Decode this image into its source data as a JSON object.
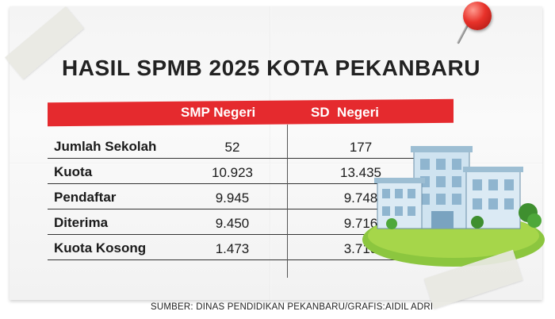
{
  "title": "HASIL SPMB 2025 KOTA PEKANBARU",
  "table": {
    "columns": [
      "SMP Negeri",
      "SD  Negeri"
    ],
    "rows": [
      {
        "label": "Jumlah Sekolah",
        "smp": "52",
        "sd": "177"
      },
      {
        "label": "Kuota",
        "smp": "10.923",
        "sd": "13.435"
      },
      {
        "label": "Pendaftar",
        "smp": "9.945",
        "sd": "9.748"
      },
      {
        "label": "Diterima",
        "smp": "9.450",
        "sd": "9.716"
      },
      {
        "label": "Kuota Kosong",
        "smp": "1.473",
        "sd": "3.719"
      }
    ]
  },
  "source": "SUMBER: DINAS PENDIDIKAN PEKANBARU/GRAFIS:AIDIL ADRI",
  "colors": {
    "header_red": "#e52a2e",
    "pin_red": "#e8322a",
    "grass_green": "#8cc63f",
    "building_blue": "#b9d7ea"
  }
}
